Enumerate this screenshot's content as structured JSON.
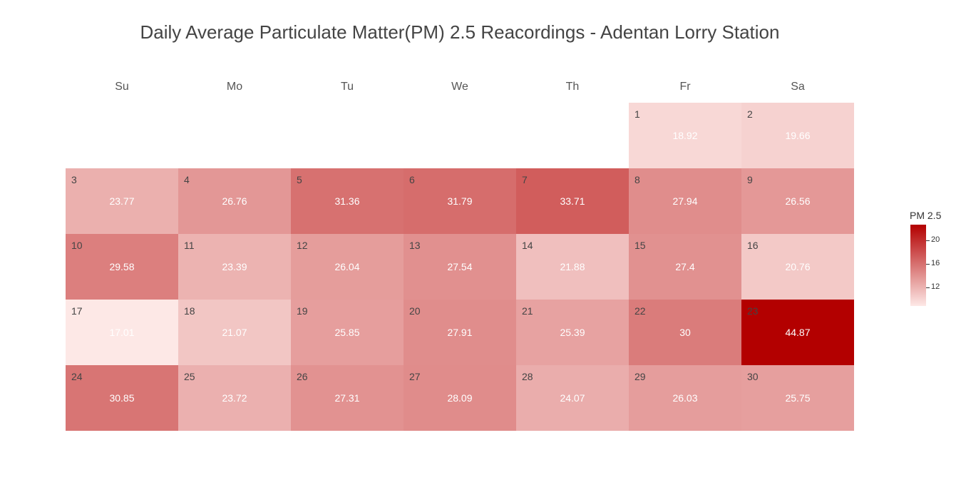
{
  "chart_data": {
    "type": "heatmap",
    "title": "Daily Average Particulate Matter(PM) 2.5 Reacordings - Adentan Lorry Station",
    "weekdays": [
      "Su",
      "Mo",
      "Tu",
      "We",
      "Th",
      "Fr",
      "Sa"
    ],
    "first_weekday_index": 5,
    "days": [
      {
        "day": "1",
        "value": 18.92
      },
      {
        "day": "2",
        "value": 19.66
      },
      {
        "day": "3",
        "value": 23.77
      },
      {
        "day": "4",
        "value": 26.76
      },
      {
        "day": "5",
        "value": 31.36
      },
      {
        "day": "6",
        "value": 31.79
      },
      {
        "day": "7",
        "value": 33.71
      },
      {
        "day": "8",
        "value": 27.94
      },
      {
        "day": "9",
        "value": 26.56
      },
      {
        "day": "10",
        "value": 29.58
      },
      {
        "day": "11",
        "value": 23.39
      },
      {
        "day": "12",
        "value": 26.04
      },
      {
        "day": "13",
        "value": 27.54
      },
      {
        "day": "14",
        "value": 21.88
      },
      {
        "day": "15",
        "value": 27.4
      },
      {
        "day": "16",
        "value": 20.76
      },
      {
        "day": "17",
        "value": 17.01
      },
      {
        "day": "18",
        "value": 21.07
      },
      {
        "day": "19",
        "value": 25.85
      },
      {
        "day": "20",
        "value": 27.91
      },
      {
        "day": "21",
        "value": 25.39
      },
      {
        "day": "22",
        "value": 30
      },
      {
        "day": "23",
        "value": 44.87
      },
      {
        "day": "24",
        "value": 30.85
      },
      {
        "day": "25",
        "value": 23.72
      },
      {
        "day": "26",
        "value": 27.31
      },
      {
        "day": "27",
        "value": 28.09
      },
      {
        "day": "28",
        "value": 24.07
      },
      {
        "day": "29",
        "value": 26.03
      },
      {
        "day": "30",
        "value": 25.75
      }
    ],
    "color_scale": {
      "low": "#fde8e6",
      "high": "#b30000"
    },
    "value_range": [
      17.01,
      44.87
    ],
    "legend": {
      "title": "PM 2.5",
      "placement": "right",
      "ticks": [
        "12",
        "16",
        "20"
      ]
    }
  }
}
